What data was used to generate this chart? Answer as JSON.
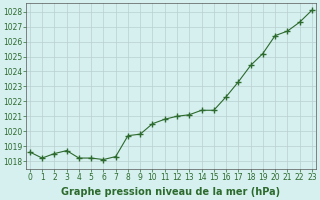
{
  "x": [
    0,
    1,
    2,
    3,
    4,
    5,
    6,
    7,
    8,
    9,
    10,
    11,
    12,
    13,
    14,
    15,
    16,
    17,
    18,
    19,
    20,
    21,
    22,
    23
  ],
  "y": [
    1018.6,
    1018.2,
    1018.5,
    1018.7,
    1018.2,
    1018.2,
    1018.1,
    1018.3,
    1019.7,
    1019.8,
    1020.5,
    1020.8,
    1021.0,
    1021.1,
    1021.4,
    1021.4,
    1022.3,
    1023.3,
    1024.4,
    1025.2,
    1026.4,
    1026.7,
    1027.3,
    1028.1
  ],
  "line_color": "#2d6a2d",
  "marker": "+",
  "marker_size": 4,
  "line_width": 0.8,
  "bg_color": "#d6f0f0",
  "grid_color": "#b8d0ce",
  "xlabel": "Graphe pression niveau de la mer (hPa)",
  "xlabel_fontsize": 7,
  "xlabel_bold": true,
  "tick_fontsize": 5.5,
  "ylim": [
    1017.5,
    1028.6
  ],
  "yticks": [
    1018,
    1019,
    1020,
    1021,
    1022,
    1023,
    1024,
    1025,
    1026,
    1027,
    1028
  ],
  "xticks": [
    0,
    1,
    2,
    3,
    4,
    5,
    6,
    7,
    8,
    9,
    10,
    11,
    12,
    13,
    14,
    15,
    16,
    17,
    18,
    19,
    20,
    21,
    22,
    23
  ],
  "xlim": [
    -0.3,
    23.3
  ]
}
